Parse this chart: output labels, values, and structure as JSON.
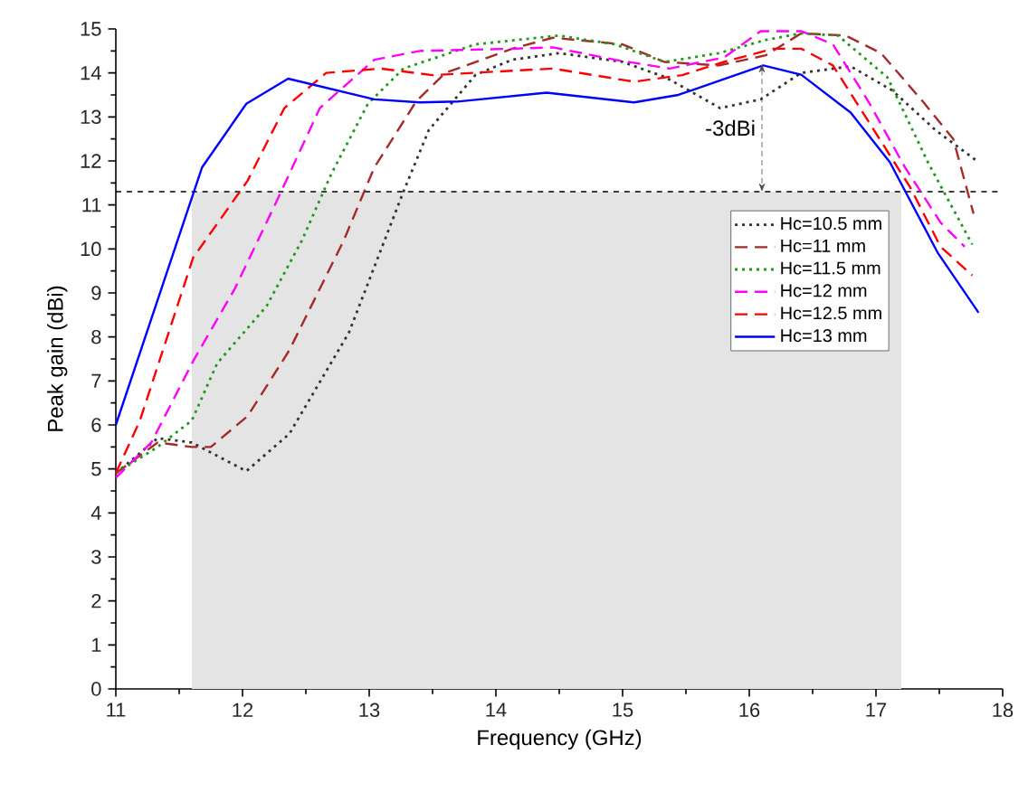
{
  "chart_data": {
    "type": "line",
    "xlabel": "Frequency (GHz)",
    "ylabel": "Peak gain (dBi)",
    "xlim": [
      11,
      18
    ],
    "xticks": [
      11,
      12,
      13,
      14,
      15,
      16,
      17,
      18
    ],
    "ylim": [
      0,
      15
    ],
    "yticks": [
      0,
      1,
      2,
      3,
      4,
      5,
      6,
      7,
      8,
      9,
      10,
      11,
      12,
      13,
      14,
      15
    ],
    "legend": "right",
    "grid": false,
    "marker": "none",
    "ref_lines": [
      {
        "axis": "y",
        "value": 11.3,
        "color": "#000000",
        "line_style": "dashed"
      }
    ],
    "bands": [
      {
        "axis": "x",
        "from": 11.6,
        "to": 17.2,
        "color": "#e4e4e4"
      }
    ],
    "annotations": [
      {
        "text": "-3dBi",
        "x": 16.1,
        "y": 14.2
      }
    ],
    "series": [
      {
        "name": "Hc=10.5 mm",
        "color": "#333333",
        "line_style": "dotted",
        "x": [
          11,
          11.33,
          11.6,
          12.03,
          12.37,
          12.84,
          13.27,
          13.47,
          13.84,
          14.13,
          14.5,
          15,
          15.34,
          15.77,
          16.09,
          16.41,
          16.8,
          17.13,
          17.47,
          17.81
        ],
        "values": [
          4.9,
          5.7,
          5.6,
          4.95,
          5.8,
          8.1,
          11.3,
          12.7,
          13.96,
          14.3,
          14.45,
          14.25,
          13.9,
          13.2,
          13.4,
          14.0,
          14.15,
          13.6,
          12.7,
          11.97
        ]
      },
      {
        "name": "Hc=11 mm",
        "color": "#a52a2a",
        "line_style": "dashed",
        "x": [
          11,
          11.33,
          11.6,
          11.75,
          12.04,
          12.37,
          12.8,
          13.04,
          13.37,
          13.6,
          14.13,
          14.45,
          15,
          15.33,
          15.76,
          16.13,
          16.41,
          16.76,
          17.04,
          17.37,
          17.61,
          17.77
        ],
        "values": [
          4.9,
          5.6,
          5.5,
          5.5,
          6.2,
          7.7,
          10.2,
          11.85,
          13.35,
          14.0,
          14.55,
          14.8,
          14.65,
          14.25,
          14.17,
          14.4,
          14.9,
          14.85,
          14.45,
          13.35,
          12.5,
          10.8
        ]
      },
      {
        "name": "Hc=11.5 mm",
        "color": "#1e9a1e",
        "line_style": "dotted",
        "x": [
          11,
          11.33,
          11.6,
          11.8,
          12.19,
          12.47,
          12.7,
          12.99,
          13.27,
          13.84,
          14.5,
          14.94,
          15.33,
          15.76,
          16.13,
          16.41,
          16.7,
          17.09,
          17.41,
          17.76
        ],
        "values": [
          4.9,
          5.5,
          6.1,
          7.4,
          8.7,
          10.2,
          11.7,
          13.3,
          14.1,
          14.65,
          14.85,
          14.65,
          14.25,
          14.45,
          14.75,
          14.9,
          14.85,
          13.9,
          11.97,
          10.1
        ]
      },
      {
        "name": "Hc=12 mm",
        "color": "#ff00ff",
        "line_style": "dashed",
        "x": [
          11,
          11.28,
          11.61,
          11.94,
          12.28,
          12.61,
          13.04,
          13.4,
          14.13,
          14.45,
          14.94,
          15.37,
          15.8,
          16.09,
          16.41,
          16.66,
          16.94,
          17.23,
          17.51,
          17.7
        ],
        "values": [
          4.8,
          5.6,
          7.45,
          9.1,
          11.15,
          13.2,
          14.3,
          14.5,
          14.55,
          14.58,
          14.3,
          14.1,
          14.35,
          14.95,
          14.95,
          14.65,
          13.35,
          11.85,
          10.6,
          10.05
        ]
      },
      {
        "name": "Hc=12.5 mm",
        "color": "#ff0000",
        "line_style": "dashed",
        "x": [
          11,
          11.19,
          11.61,
          12.04,
          12.33,
          12.66,
          13.09,
          13.5,
          14.13,
          14.45,
          15.09,
          15.47,
          15.8,
          16.19,
          16.41,
          16.66,
          16.94,
          17.27,
          17.51,
          17.76
        ],
        "values": [
          4.9,
          6.1,
          9.8,
          11.55,
          13.2,
          14.0,
          14.1,
          13.95,
          14.05,
          14.1,
          13.8,
          13.95,
          14.25,
          14.55,
          14.55,
          14.17,
          12.9,
          11.4,
          10.05,
          9.4
        ]
      },
      {
        "name": "Hc=13 mm",
        "color": "#0000ff",
        "line_style": "solid",
        "x": [
          11,
          11.68,
          12.03,
          12.36,
          13.04,
          13.4,
          13.7,
          14.4,
          15.09,
          15.44,
          16.11,
          16.41,
          16.8,
          17.11,
          17.49,
          17.81
        ],
        "values": [
          6.0,
          11.85,
          13.3,
          13.87,
          13.4,
          13.33,
          13.35,
          13.55,
          13.33,
          13.5,
          14.17,
          13.96,
          13.1,
          11.97,
          9.9,
          8.55
        ]
      }
    ]
  }
}
